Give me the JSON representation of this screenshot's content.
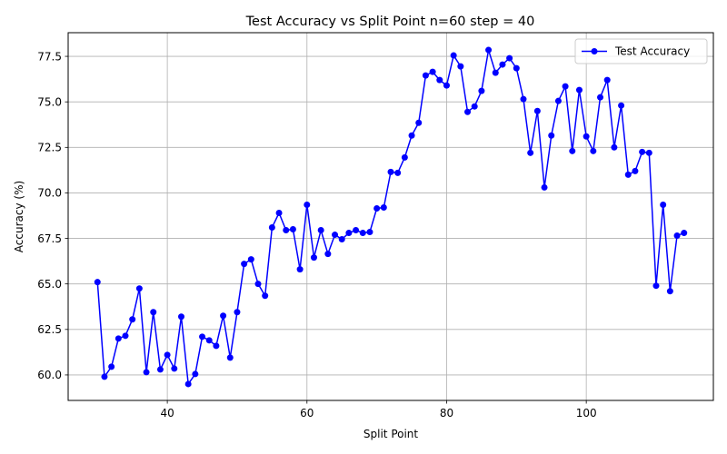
{
  "chart_data": {
    "type": "line",
    "title": "Test Accuracy vs Split Point n=60 step = 40",
    "xlabel": "Split Point",
    "ylabel": "Accuracy (%)",
    "xlim": [
      25.8,
      118.2
    ],
    "ylim": [
      58.6,
      78.8
    ],
    "xticks": [
      40,
      60,
      80,
      100
    ],
    "yticks": [
      60.0,
      62.5,
      65.0,
      67.5,
      70.0,
      72.5,
      75.0,
      77.5
    ],
    "grid": true,
    "legend_position": "top-right",
    "series_color": "#0000ff",
    "series": [
      {
        "name": "Test Accuracy",
        "x": [
          30,
          31,
          32,
          33,
          34,
          35,
          36,
          37,
          38,
          39,
          40,
          41,
          42,
          43,
          44,
          45,
          46,
          47,
          48,
          49,
          50,
          51,
          52,
          53,
          54,
          55,
          56,
          57,
          58,
          59,
          60,
          61,
          62,
          63,
          64,
          65,
          66,
          67,
          68,
          69,
          70,
          71,
          72,
          73,
          74,
          75,
          76,
          77,
          78,
          79,
          80,
          81,
          82,
          83,
          84,
          85,
          86,
          87,
          88,
          89,
          90,
          91,
          92,
          93,
          94,
          95,
          96,
          97,
          98,
          99,
          100,
          101,
          102,
          103,
          104,
          105,
          106,
          107,
          108,
          109,
          110,
          111,
          112,
          113,
          114
        ],
        "values": [
          65.1,
          59.9,
          60.45,
          62.0,
          62.15,
          63.05,
          64.75,
          60.15,
          63.45,
          60.3,
          61.1,
          60.35,
          63.2,
          59.5,
          60.05,
          62.1,
          61.9,
          61.6,
          63.25,
          60.95,
          63.45,
          66.1,
          66.35,
          65.0,
          64.35,
          68.1,
          68.9,
          67.95,
          68.0,
          65.8,
          69.35,
          66.45,
          67.95,
          66.65,
          67.7,
          67.45,
          67.8,
          67.95,
          67.8,
          67.85,
          69.15,
          69.2,
          71.15,
          71.1,
          71.95,
          73.15,
          73.85,
          76.45,
          76.65,
          76.2,
          75.9,
          77.55,
          76.95,
          74.45,
          74.75,
          75.6,
          77.85,
          76.6,
          77.05,
          77.4,
          76.85,
          75.15,
          72.2,
          74.5,
          70.3,
          73.15,
          75.05,
          75.85,
          72.3,
          75.65,
          73.1,
          72.3,
          75.25,
          76.2,
          72.5,
          74.8,
          71.0,
          71.2,
          72.25,
          72.2,
          64.9,
          69.35,
          64.6,
          67.65,
          67.8
        ]
      }
    ]
  }
}
